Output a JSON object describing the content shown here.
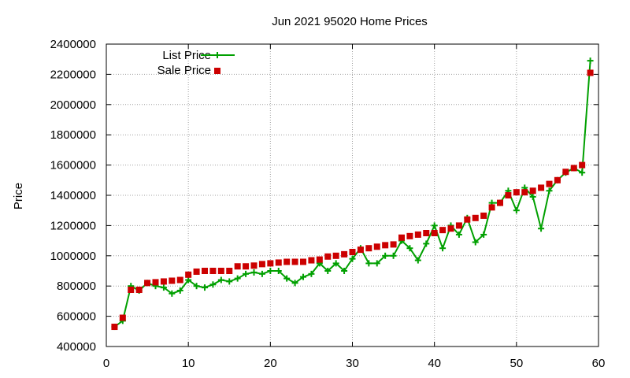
{
  "chart_data": {
    "type": "line",
    "title": "Jun 2021 95020 Home Prices",
    "xlabel": "",
    "ylabel": "Price",
    "xlim": [
      0,
      60
    ],
    "ylim": [
      400000,
      2400000
    ],
    "x_ticks": [
      "0",
      "10",
      "20",
      "30",
      "40",
      "50",
      "60"
    ],
    "y_ticks": [
      "400000",
      "600000",
      "800000",
      "1000000",
      "1200000",
      "1400000",
      "1600000",
      "1800000",
      "2000000",
      "2200000",
      "2400000"
    ],
    "grid": true,
    "legend_position": "top-left",
    "series": [
      {
        "name": "List Price",
        "style": "line+cross",
        "color": "#00a000",
        "x": [
          1,
          2,
          3,
          4,
          5,
          6,
          7,
          8,
          9,
          10,
          11,
          12,
          13,
          14,
          15,
          16,
          17,
          18,
          19,
          20,
          21,
          22,
          23,
          24,
          25,
          26,
          27,
          28,
          29,
          30,
          31,
          32,
          33,
          34,
          35,
          36,
          37,
          38,
          39,
          40,
          41,
          42,
          43,
          44,
          45,
          46,
          47,
          48,
          49,
          50,
          51,
          52,
          53,
          54,
          55,
          56,
          57,
          58,
          59
        ],
        "values": [
          530000,
          570000,
          800000,
          770000,
          820000,
          800000,
          790000,
          750000,
          770000,
          840000,
          800000,
          790000,
          810000,
          840000,
          830000,
          850000,
          880000,
          890000,
          880000,
          900000,
          900000,
          850000,
          820000,
          860000,
          880000,
          950000,
          900000,
          950000,
          900000,
          980000,
          1050000,
          950000,
          950000,
          1000000,
          1000000,
          1100000,
          1050000,
          970000,
          1080000,
          1200000,
          1050000,
          1200000,
          1140000,
          1250000,
          1090000,
          1140000,
          1350000,
          1350000,
          1430000,
          1300000,
          1450000,
          1390000,
          1180000,
          1430000,
          1500000,
          1550000,
          1580000,
          1550000,
          2290000
        ]
      },
      {
        "name": "Sale Price",
        "style": "square",
        "color": "#cc0000",
        "x": [
          1,
          2,
          3,
          4,
          5,
          6,
          7,
          8,
          9,
          10,
          11,
          12,
          13,
          14,
          15,
          16,
          17,
          18,
          19,
          20,
          21,
          22,
          23,
          24,
          25,
          26,
          27,
          28,
          29,
          30,
          31,
          32,
          33,
          34,
          35,
          36,
          37,
          38,
          39,
          40,
          41,
          42,
          43,
          44,
          45,
          46,
          47,
          48,
          49,
          50,
          51,
          52,
          53,
          54,
          55,
          56,
          57,
          58,
          59
        ],
        "values": [
          530000,
          590000,
          775000,
          775000,
          820000,
          825000,
          830000,
          835000,
          840000,
          875000,
          895000,
          900000,
          900000,
          900000,
          900000,
          930000,
          930000,
          935000,
          945000,
          950000,
          955000,
          960000,
          960000,
          960000,
          970000,
          975000,
          995000,
          1000000,
          1010000,
          1025000,
          1040000,
          1050000,
          1060000,
          1070000,
          1075000,
          1120000,
          1130000,
          1140000,
          1150000,
          1150000,
          1170000,
          1180000,
          1200000,
          1240000,
          1250000,
          1265000,
          1320000,
          1350000,
          1400000,
          1420000,
          1420000,
          1430000,
          1450000,
          1475000,
          1500000,
          1555000,
          1580000,
          1600000,
          2210000
        ]
      }
    ]
  }
}
